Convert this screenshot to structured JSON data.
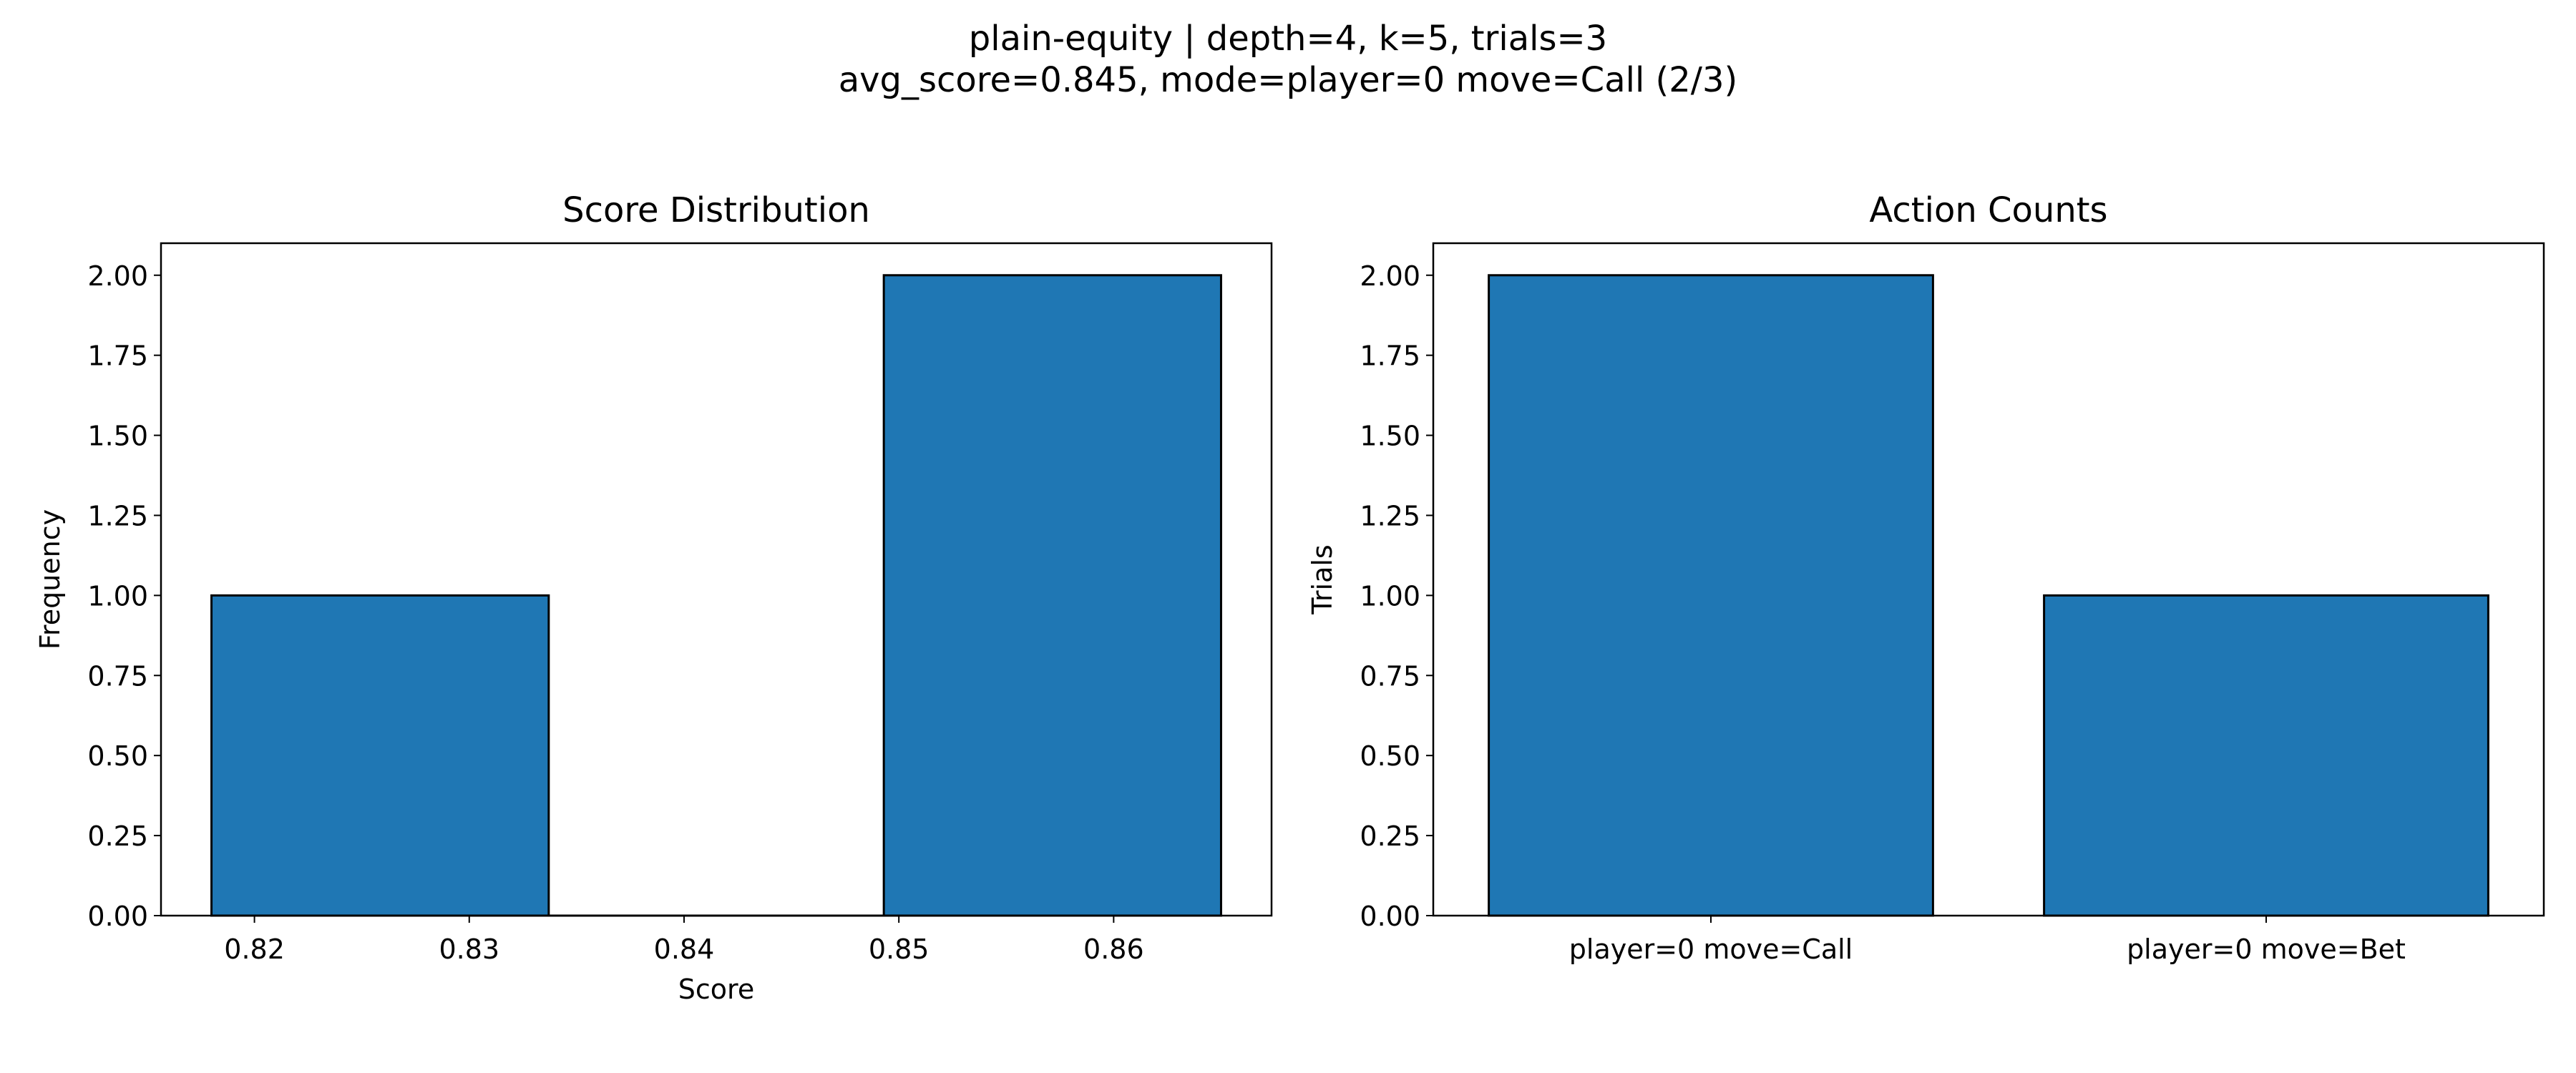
{
  "figure": {
    "title_line1": "plain-equity | depth=4, k=5, trials=3",
    "title_line2": "avg_score=0.845, mode=player=0 move=Call (2/3)"
  },
  "colors": {
    "bar": "#1f77b4",
    "edge": "#000000",
    "axis": "#000000"
  },
  "chart_data": [
    {
      "type": "bar",
      "title": "Score Distribution",
      "xlabel": "Score",
      "ylabel": "Frequency",
      "bins": [
        {
          "start": 0.818,
          "end": 0.8337,
          "count": 1
        },
        {
          "start": 0.8337,
          "end": 0.8493,
          "count": 0
        },
        {
          "start": 0.8493,
          "end": 0.865,
          "count": 2
        }
      ],
      "xlim": [
        0.81565,
        0.86735
      ],
      "ylim": [
        0,
        2.1
      ],
      "xticks": [
        0.82,
        0.83,
        0.84,
        0.85,
        0.86
      ],
      "xtick_labels": [
        "0.82",
        "0.83",
        "0.84",
        "0.85",
        "0.86"
      ],
      "yticks": [
        0,
        0.25,
        0.5,
        0.75,
        1.0,
        1.25,
        1.5,
        1.75,
        2.0
      ],
      "ytick_labels": [
        "0.00",
        "0.25",
        "0.50",
        "0.75",
        "1.00",
        "1.25",
        "1.50",
        "1.75",
        "2.00"
      ],
      "grid": false,
      "legend": "none"
    },
    {
      "type": "bar",
      "title": "Action Counts",
      "xlabel": "",
      "ylabel": "Trials",
      "categories": [
        "player=0 move=Call",
        "player=0 move=Bet"
      ],
      "values": [
        2,
        1
      ],
      "xlim": [
        -0.5,
        1.5
      ],
      "ylim": [
        0,
        2.1
      ],
      "yticks": [
        0,
        0.25,
        0.5,
        0.75,
        1.0,
        1.25,
        1.5,
        1.75,
        2.0
      ],
      "ytick_labels": [
        "0.00",
        "0.25",
        "0.50",
        "0.75",
        "1.00",
        "1.25",
        "1.50",
        "1.75",
        "2.00"
      ],
      "grid": false,
      "legend": "none"
    }
  ]
}
